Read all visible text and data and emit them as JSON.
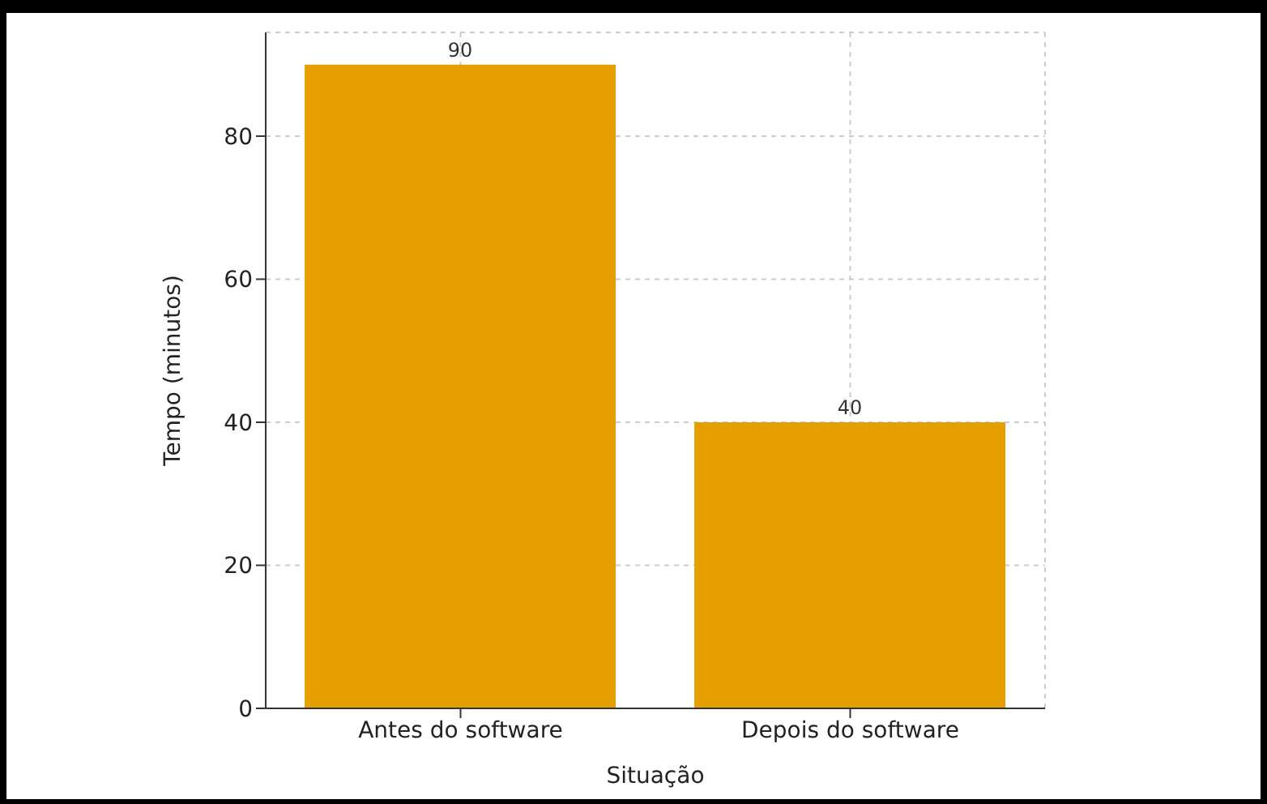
{
  "chart_data": {
    "type": "bar",
    "xlabel": "Situação",
    "ylabel": "Tempo (minutos)",
    "categories": [
      "Antes do software",
      "Depois do software"
    ],
    "values": [
      90,
      40
    ],
    "color": "#e69f00",
    "ylim": [
      0,
      94.5
    ],
    "yticks": [
      0,
      20,
      40,
      60,
      80
    ],
    "grid": true,
    "data_labels": true
  }
}
